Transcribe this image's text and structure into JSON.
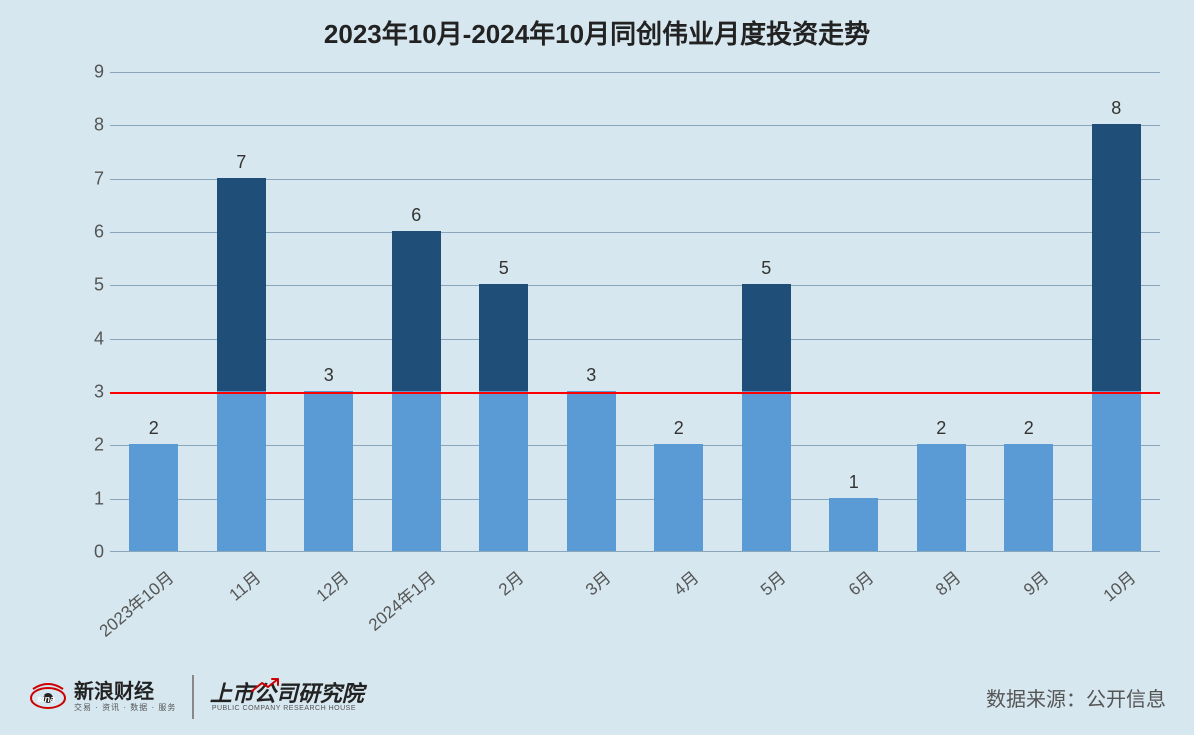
{
  "title": "2023年10月-2024年10月同创伟业月度投资走势",
  "title_fontsize": 26,
  "title_color": "#222222",
  "background_color": "#d6e7ef",
  "chart": {
    "type": "bar",
    "categories": [
      "2023年10月",
      "11月",
      "12月",
      "2024年1月",
      "2月",
      "3月",
      "4月",
      "5月",
      "6月",
      "8月",
      "9月",
      "10月"
    ],
    "values": [
      2,
      7,
      3,
      6,
      5,
      3,
      2,
      5,
      1,
      2,
      2,
      8
    ],
    "threshold": 3,
    "bar_colors_below_eq": "#5b9bd5",
    "bar_colors_above": "#1f4e79",
    "ylim": [
      0,
      9
    ],
    "ytick_step": 1,
    "x_label_fontsize": 17,
    "x_label_rotation_deg": -40,
    "y_tick_fontsize": 18,
    "data_label_fontsize": 18,
    "grid_color": "#8aa6bb",
    "axis_color": "#8aa6bb",
    "reference_line": {
      "y": 3,
      "color": "#ff0000",
      "width": 2.5
    },
    "bar_width_ratio": 0.56
  },
  "footer": {
    "sina_brand_cn": "新浪财经",
    "sina_brand_sub": "交易 · 资讯 · 数据 · 服务",
    "sina_word": "sina",
    "institute_cn": "上市公司研究院",
    "institute_en": "PUBLIC COMPANY RESEARCH HOUSE",
    "source_label": "数据来源：公开信息",
    "text_color": "#555555"
  }
}
